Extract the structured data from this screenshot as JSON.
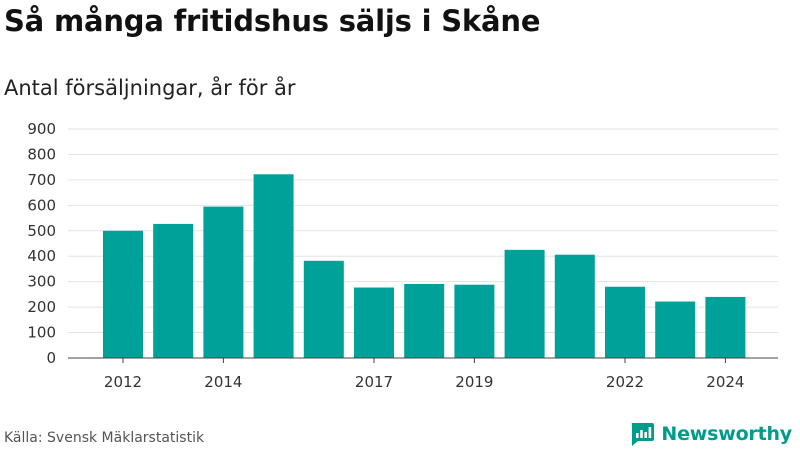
{
  "header": {
    "title": "Så många fritidshus säljs i Skåne",
    "subtitle": "Antal försäljningar, år för år"
  },
  "footer": {
    "source": "Källa: Svensk Mäklarstatistik",
    "brand": "Newsworthy",
    "brand_icon": "newsworthy-logo-icon"
  },
  "colors": {
    "bar": "#00a199",
    "grid": "#e3e3e3",
    "baseline": "#444444",
    "brand": "#009c8b"
  },
  "chart_data": {
    "type": "bar",
    "title": "Så många fritidshus säljs i Skåne",
    "subtitle": "Antal försäljningar, år för år",
    "categories": [
      "2012",
      "2013",
      "2014",
      "2015",
      "2016",
      "2017",
      "2018",
      "2019",
      "2020",
      "2021",
      "2022",
      "2023",
      "2024"
    ],
    "x_tick_labels": [
      "2012",
      "",
      "2014",
      "",
      "",
      "2017",
      "",
      "2019",
      "",
      "",
      "2022",
      "",
      "2024"
    ],
    "values": [
      500,
      527,
      595,
      722,
      382,
      277,
      291,
      288,
      425,
      406,
      280,
      222,
      240
    ],
    "ylim": [
      0,
      900
    ],
    "yticks": [
      0,
      100,
      200,
      300,
      400,
      500,
      600,
      700,
      800,
      900
    ],
    "xlabel": "",
    "ylabel": "",
    "grid": true
  }
}
